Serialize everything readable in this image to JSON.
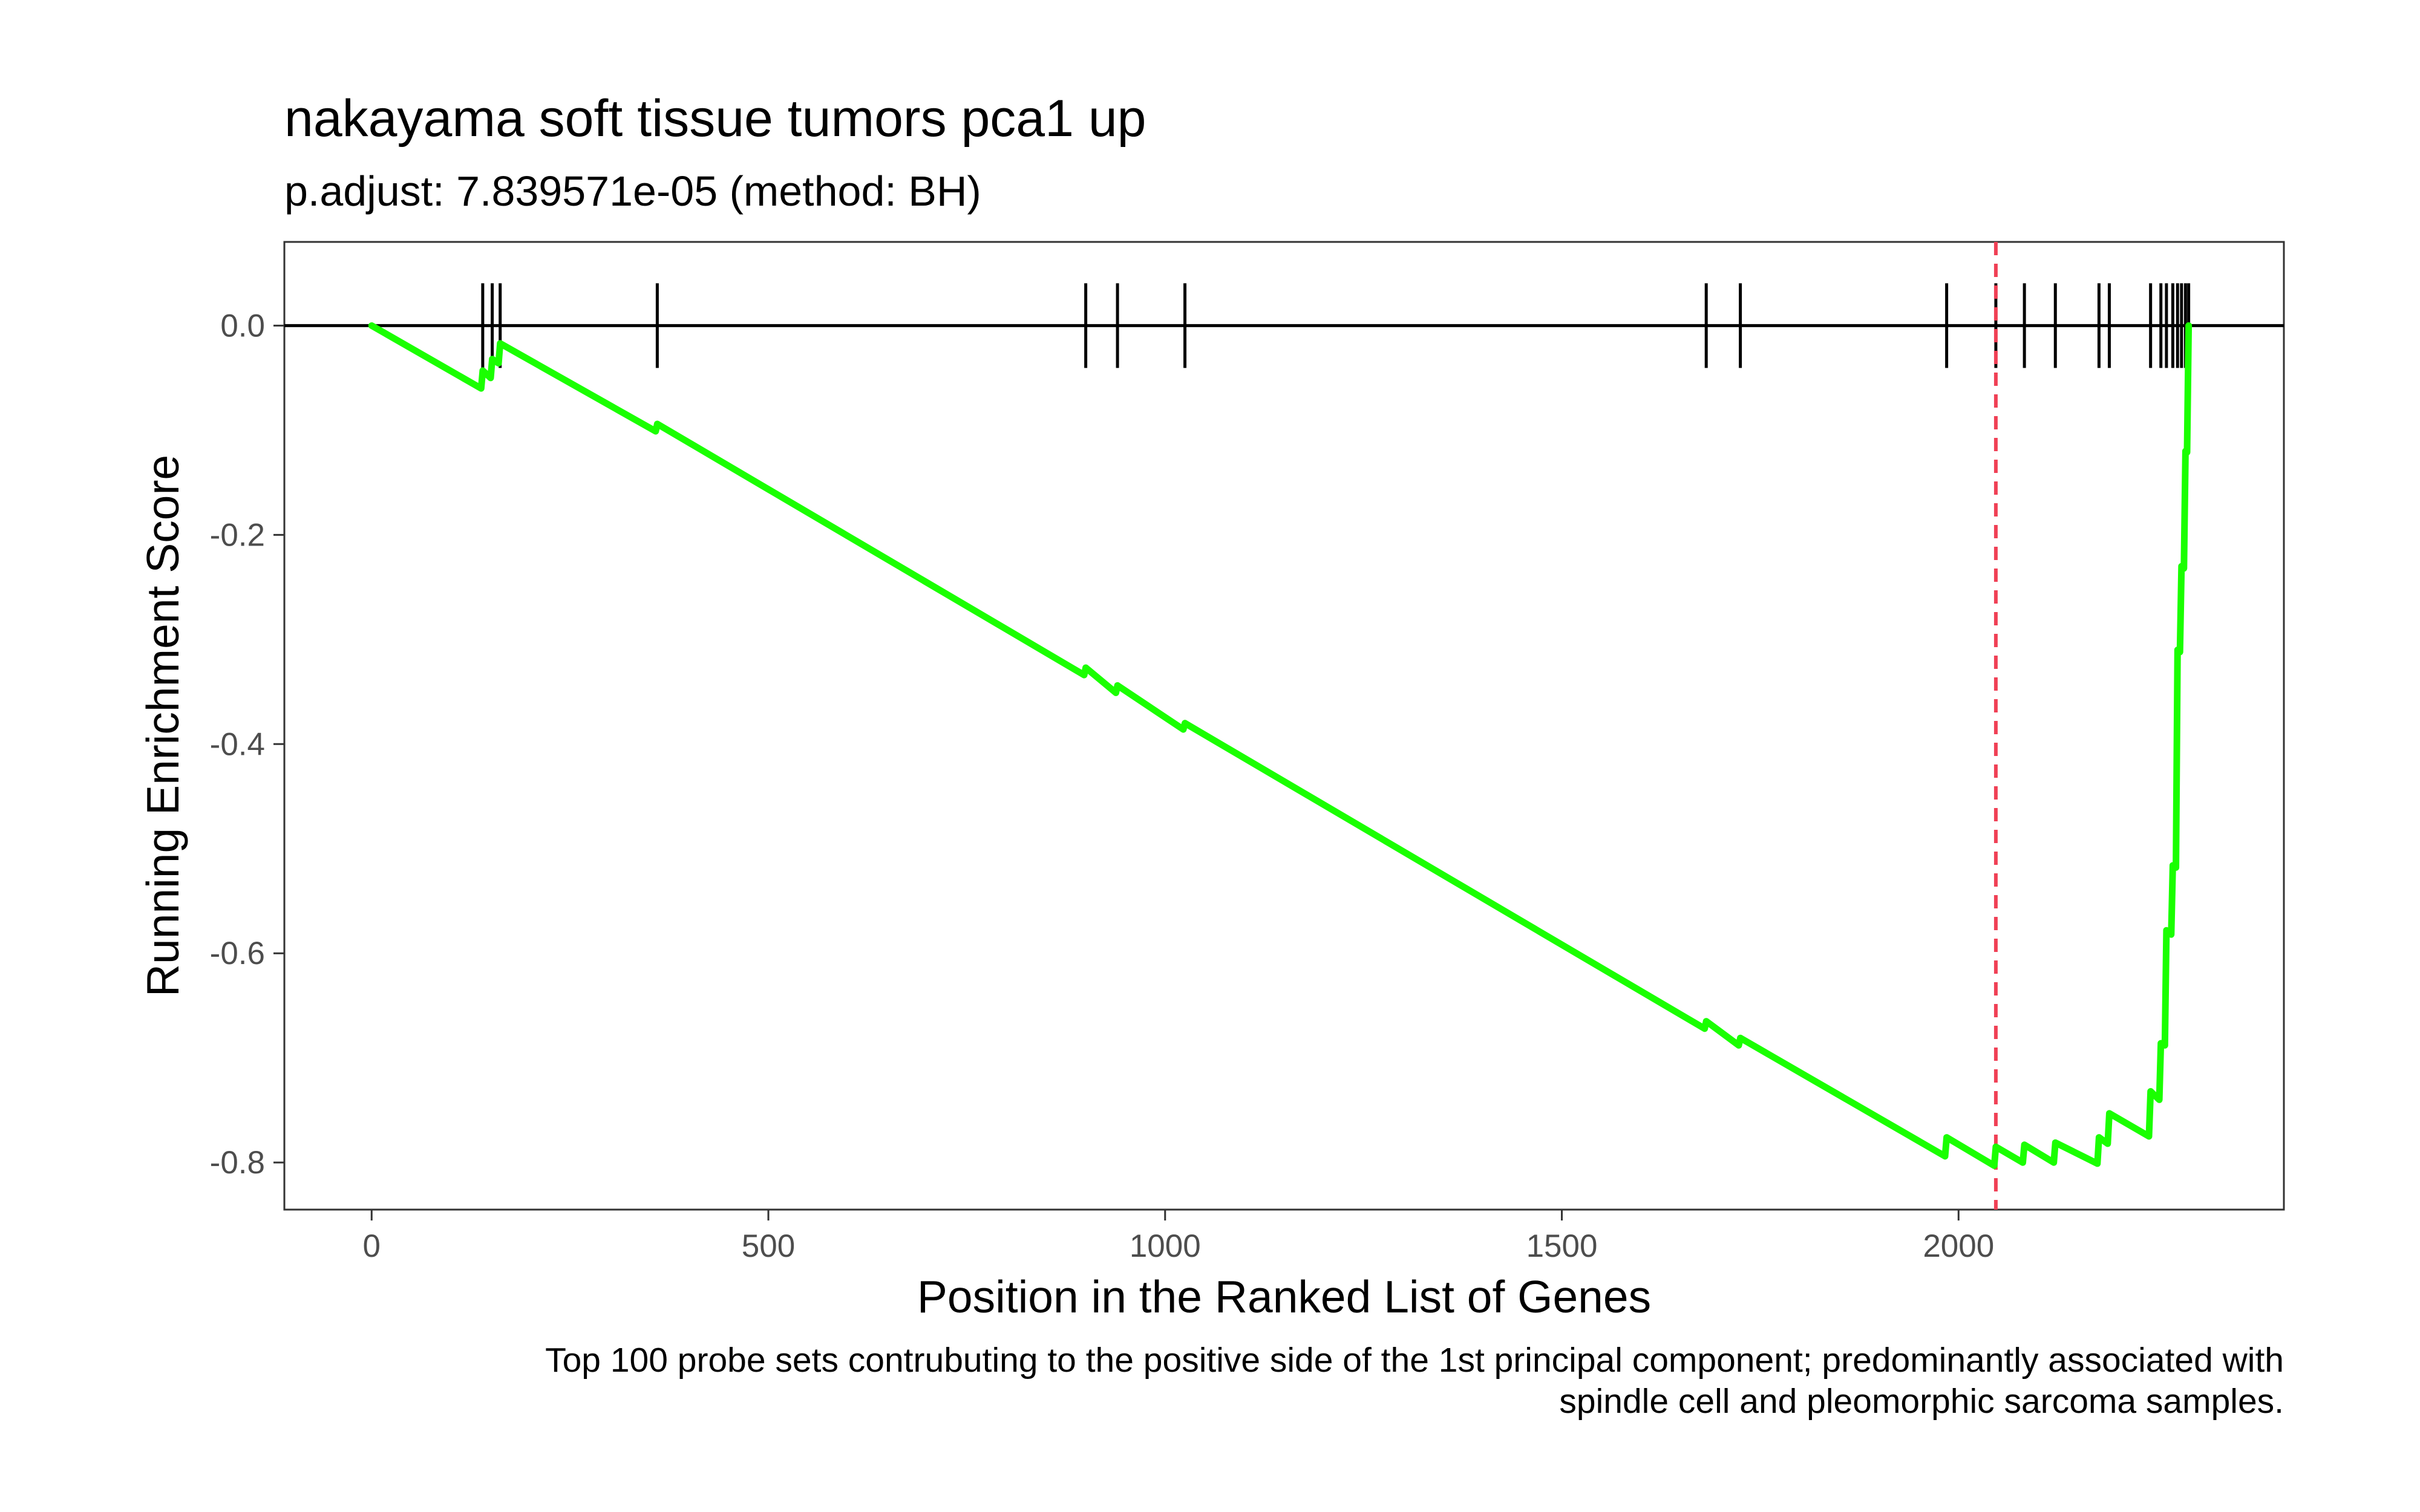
{
  "chart_data": {
    "type": "line",
    "title": "nakayama soft tissue tumors pca1 up",
    "subtitle": "p.adjust: 7.839571e-05 (method: BH)",
    "xlabel": "Position in the Ranked List of Genes",
    "ylabel": "Running Enrichment Score",
    "caption": [
      "Top 100 probe sets contrubuting to the positive side of the 1st principal component; predominantly associated with",
      "spindle cell and pleomorphic sarcoma samples."
    ],
    "xlim": [
      -110,
      2410
    ],
    "ylim": [
      -0.845,
      0.08
    ],
    "x_ticks": [
      0,
      500,
      1000,
      1500,
      2000
    ],
    "x_tick_labels": [
      "0",
      "500",
      "1000",
      "1500",
      "2000"
    ],
    "y_ticks": [
      0.0,
      -0.2,
      -0.4,
      -0.6,
      -0.8
    ],
    "y_tick_labels": [
      "0.0",
      "-0.2",
      "-0.4",
      "-0.6",
      "-0.8"
    ],
    "grid": false,
    "colors": {
      "line": "#1AFF00",
      "marker": "#000000",
      "peak_line": "#F04055",
      "zero_line": "#000000"
    },
    "peak_position": 2047,
    "gene_hits": [
      140,
      152,
      162,
      360,
      900,
      940,
      1025,
      1682,
      1725,
      1985,
      2047,
      2083,
      2122,
      2177,
      2190,
      2242,
      2255,
      2262,
      2270,
      2276,
      2281,
      2286,
      2290
    ],
    "series": [
      {
        "x": [
          0,
          138,
          140,
          150,
          152,
          160,
          162,
          358,
          360,
          898,
          900,
          938,
          940,
          1023,
          1025,
          1680,
          1682,
          1723,
          1725,
          1983,
          1985,
          2045,
          2047,
          2081,
          2083,
          2120,
          2122,
          2175,
          2177,
          2188,
          2190,
          2240,
          2242,
          2253,
          2255,
          2260,
          2262,
          2268,
          2270,
          2274,
          2276,
          2279,
          2281,
          2284,
          2286,
          2288,
          2290
        ],
        "y": [
          0.0,
          -0.06,
          -0.043,
          -0.05,
          -0.032,
          -0.036,
          -0.017,
          -0.101,
          -0.094,
          -0.334,
          -0.327,
          -0.351,
          -0.344,
          -0.386,
          -0.38,
          -0.672,
          -0.665,
          -0.688,
          -0.681,
          -0.794,
          -0.776,
          -0.803,
          -0.785,
          -0.8,
          -0.783,
          -0.8,
          -0.781,
          -0.801,
          -0.776,
          -0.782,
          -0.753,
          -0.775,
          -0.732,
          -0.74,
          -0.686,
          -0.688,
          -0.578,
          -0.582,
          -0.516,
          -0.518,
          -0.31,
          -0.312,
          -0.23,
          -0.232,
          -0.12,
          -0.121,
          0.0
        ]
      }
    ]
  }
}
